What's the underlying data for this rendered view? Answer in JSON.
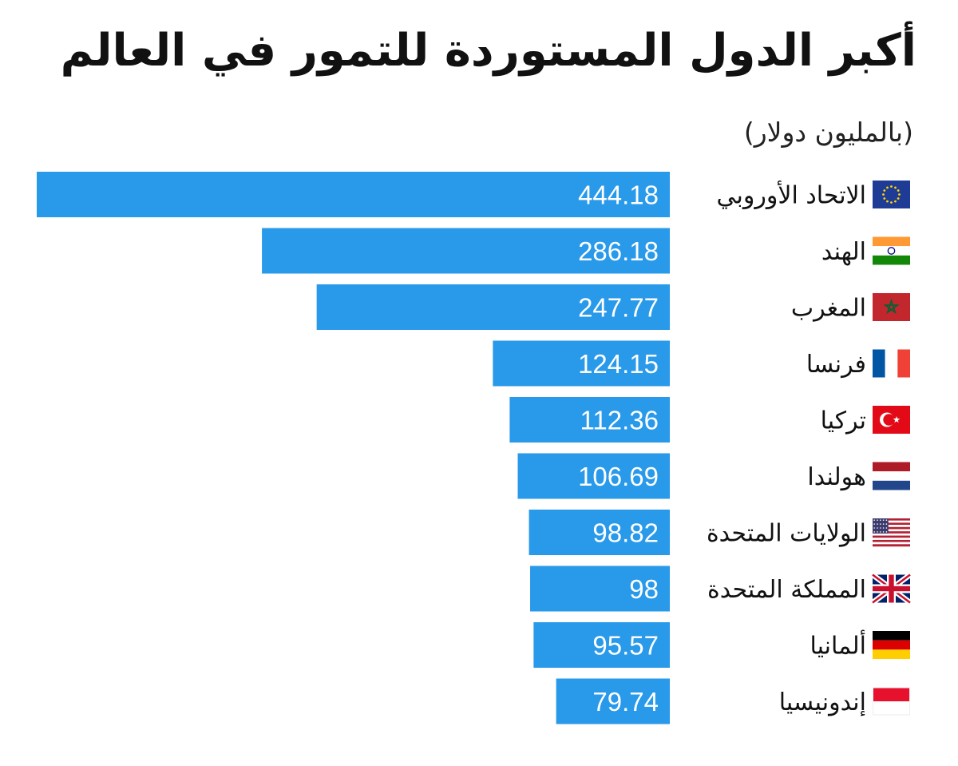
{
  "chart_data": {
    "type": "bar",
    "orientation": "horizontal",
    "title": "أكبر الدول المستوردة للتمور في العالم",
    "subtitle": "(بالمليون دولار)",
    "bar_color": "#2999ea",
    "categories": [
      "الاتحاد الأوروبي",
      "الهند",
      "المغرب",
      "فرنسا",
      "تركيا",
      "هولندا",
      "الولايات المتحدة",
      "المملكة المتحدة",
      "ألمانيا",
      "إندونيسيا"
    ],
    "flags": [
      "eu-flag-icon",
      "india-flag-icon",
      "morocco-flag-icon",
      "france-flag-icon",
      "turkey-flag-icon",
      "netherlands-flag-icon",
      "usa-flag-icon",
      "uk-flag-icon",
      "germany-flag-icon",
      "indonesia-flag-icon"
    ],
    "values": [
      444.18,
      286.18,
      247.77,
      124.15,
      112.36,
      106.69,
      98.82,
      98,
      95.57,
      79.74
    ],
    "value_labels": [
      "444.18",
      "286.18",
      "247.77",
      "124.15",
      "112.36",
      "106.69",
      "98.82",
      "98",
      "95.57",
      "79.74"
    ],
    "xlim": [
      0,
      444.18
    ],
    "grid": false,
    "legend": "none"
  }
}
